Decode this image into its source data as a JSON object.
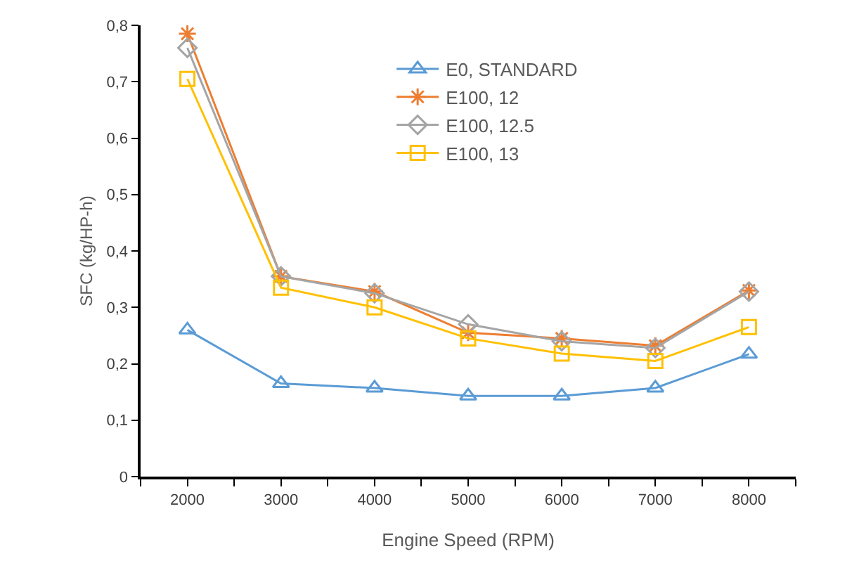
{
  "chart_data": {
    "type": "line",
    "xlabel": "Engine Speed (RPM)",
    "ylabel": "SFC (kg/HP-h)",
    "categories": [
      "2000",
      "3000",
      "4000",
      "5000",
      "6000",
      "7000",
      "8000"
    ],
    "series": [
      {
        "name": "E0, STANDARD",
        "color": "#5b9bd5",
        "marker": "triangle",
        "values": [
          0.26,
          0.165,
          0.157,
          0.143,
          0.143,
          0.157,
          0.217
        ]
      },
      {
        "name": "E100, 12",
        "color": "#ed7d31",
        "marker": "cross",
        "values": [
          0.785,
          0.355,
          0.328,
          0.255,
          0.245,
          0.232,
          0.33
        ]
      },
      {
        "name": "E100, 12.5",
        "color": "#a5a5a5",
        "marker": "diamond",
        "values": [
          0.76,
          0.355,
          0.325,
          0.27,
          0.24,
          0.228,
          0.328
        ]
      },
      {
        "name": "E100, 13",
        "color": "#ffc000",
        "marker": "square",
        "values": [
          0.705,
          0.335,
          0.3,
          0.245,
          0.218,
          0.205,
          0.265
        ]
      }
    ],
    "ylim": [
      0,
      0.8
    ],
    "yticks": [
      0,
      {
        "value": 0.1,
        "label": "0,1"
      },
      {
        "value": 0.2,
        "label": "0,2"
      },
      {
        "value": 0.3,
        "label": "0,3"
      },
      {
        "value": 0.4,
        "label": "0,4"
      },
      {
        "value": 0.5,
        "label": "0,5"
      },
      {
        "value": 0.6,
        "label": "0,6"
      },
      {
        "value": 0.7,
        "label": "0,7"
      },
      {
        "value": 0.8,
        "label": "0,8"
      }
    ],
    "grid": false,
    "legend": "top right",
    "line_style": "solid"
  }
}
